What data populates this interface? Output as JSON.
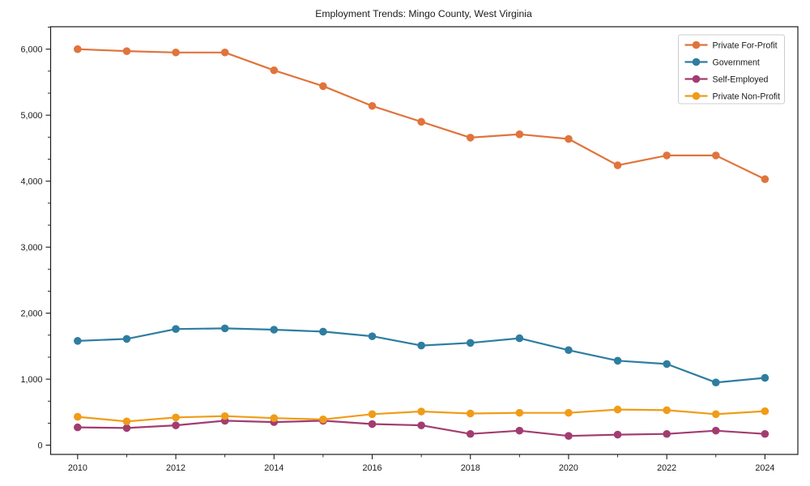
{
  "chart_data": {
    "type": "line",
    "title": "Employment Trends: Mingo County, West Virginia",
    "x": [
      2010,
      2011,
      2012,
      2013,
      2014,
      2015,
      2016,
      2017,
      2018,
      2019,
      2020,
      2021,
      2022,
      2023,
      2024
    ],
    "series": [
      {
        "name": "Private For-Profit",
        "color": "#e0743c",
        "values": [
          6000,
          5970,
          5950,
          5950,
          5680,
          5440,
          5140,
          4900,
          4660,
          4710,
          4640,
          4240,
          4390,
          4390,
          4030
        ]
      },
      {
        "name": "Government",
        "color": "#2e7da0",
        "values": [
          1580,
          1610,
          1760,
          1770,
          1750,
          1720,
          1650,
          1510,
          1550,
          1620,
          1440,
          1280,
          1230,
          950,
          1020
        ]
      },
      {
        "name": "Self-Employed",
        "color": "#a23c70",
        "values": [
          270,
          260,
          300,
          370,
          350,
          370,
          320,
          300,
          170,
          220,
          140,
          160,
          170,
          220,
          170
        ]
      },
      {
        "name": "Private Non-Profit",
        "color": "#f09c18",
        "values": [
          430,
          360,
          420,
          440,
          410,
          390,
          470,
          510,
          480,
          490,
          490,
          540,
          530,
          470,
          515
        ]
      }
    ],
    "xlabel": "",
    "ylabel": "",
    "xlim": [
      2009.45,
      2024.67
    ],
    "ylim": [
      -140,
      6340
    ],
    "x_ticks": [
      2010,
      2012,
      2014,
      2016,
      2018,
      2020,
      2022,
      2024
    ],
    "x_tick_labels": [
      "2010",
      "2012",
      "2014",
      "2016",
      "2018",
      "2020",
      "2022",
      "2024"
    ],
    "x_minor_ticks": [
      2011,
      2013,
      2015,
      2017,
      2019,
      2021,
      2023
    ],
    "y_ticks": [
      0,
      1000,
      2000,
      3000,
      4000,
      5000,
      6000
    ],
    "y_tick_labels": [
      "0",
      "1,000",
      "2,000",
      "3,000",
      "4,000",
      "5,000",
      "6,000"
    ],
    "grid": false,
    "legend_position": "upper right",
    "axis_color": "#1a1a1a",
    "legend_border_color": "#cccccc",
    "background_color": "#ffffff"
  }
}
